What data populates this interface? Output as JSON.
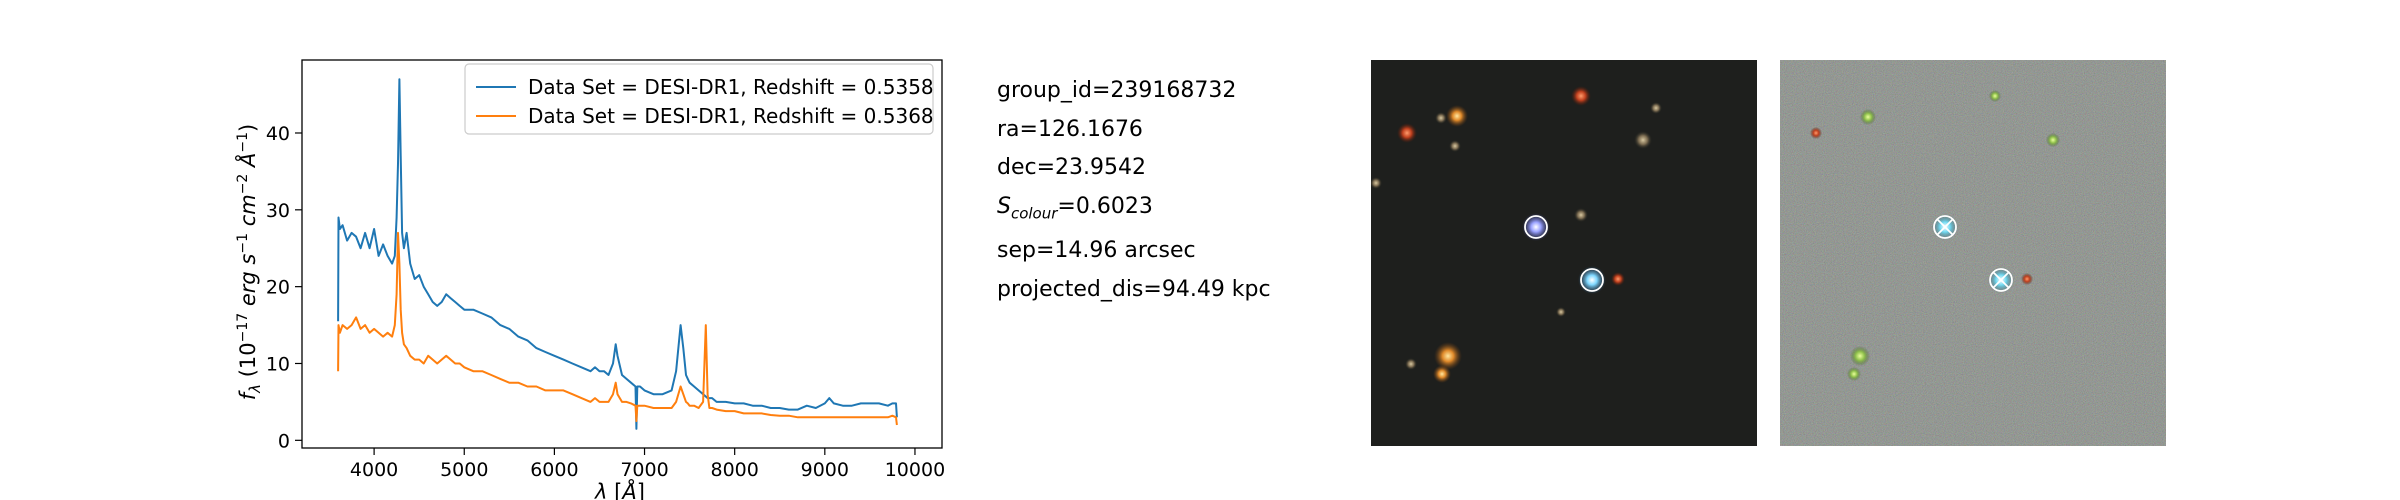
{
  "chart_data": {
    "type": "line",
    "title": "",
    "xlabel": "λ [Å]",
    "ylabel": "f_λ (10^-17 erg s^-1 cm^-2 Å^-1)",
    "xlim": [
      3200,
      10300
    ],
    "ylim": [
      -1,
      49.5
    ],
    "xticks": [
      4000,
      5000,
      6000,
      7000,
      8000,
      9000,
      10000
    ],
    "yticks": [
      0,
      10,
      20,
      30,
      40
    ],
    "grid": false,
    "legend_position": "top-right",
    "series": [
      {
        "name": "Data Set = DESI-DR1, Redshift = 0.5358",
        "color": "#1f77b4",
        "x": [
          3600,
          3605,
          3620,
          3650,
          3700,
          3750,
          3800,
          3850,
          3900,
          3950,
          4000,
          4050,
          4100,
          4150,
          4200,
          4230,
          4250,
          4265,
          4280,
          4295,
          4310,
          4330,
          4360,
          4400,
          4450,
          4500,
          4550,
          4600,
          4650,
          4700,
          4750,
          4800,
          4850,
          4900,
          4950,
          5000,
          5100,
          5200,
          5300,
          5400,
          5500,
          5600,
          5700,
          5800,
          5900,
          6000,
          6100,
          6200,
          6300,
          6400,
          6450,
          6500,
          6550,
          6600,
          6650,
          6680,
          6700,
          6750,
          6800,
          6850,
          6900,
          6910,
          6920,
          6950,
          7000,
          7100,
          7200,
          7300,
          7350,
          7400,
          7430,
          7460,
          7480,
          7500,
          7550,
          7600,
          7650,
          7700,
          7750,
          7800,
          7900,
          8000,
          8100,
          8200,
          8300,
          8400,
          8500,
          8600,
          8700,
          8800,
          8900,
          9000,
          9050,
          9100,
          9200,
          9300,
          9400,
          9500,
          9600,
          9700,
          9750,
          9790,
          9800
        ],
        "y": [
          15.5,
          29,
          27.5,
          28,
          26,
          27,
          26.5,
          25,
          27,
          25,
          27.5,
          24,
          25.5,
          24,
          23,
          24,
          29,
          36,
          47,
          37,
          27,
          25,
          27,
          23,
          21,
          21.5,
          20,
          19,
          18,
          17.5,
          18,
          19,
          18.5,
          18,
          17.5,
          17,
          17,
          16.5,
          16,
          15,
          14.5,
          13.5,
          13,
          12,
          11.5,
          11,
          10.5,
          10,
          9.5,
          9,
          9.5,
          9,
          9,
          8.5,
          10,
          12.5,
          11,
          8.5,
          8,
          7.5,
          7,
          1.5,
          7,
          7,
          6.5,
          6,
          6,
          6.5,
          9,
          15,
          12,
          8.5,
          8,
          7.5,
          7,
          6.5,
          6,
          5.5,
          5.5,
          5,
          5,
          4.8,
          4.8,
          4.5,
          4.5,
          4.2,
          4.2,
          4,
          4,
          4.5,
          4.2,
          4.8,
          5.5,
          4.8,
          4.5,
          4.5,
          4.8,
          4.8,
          4.8,
          4.5,
          4.8,
          4.8,
          3
        ]
      },
      {
        "name": "Data Set = DESI-DR1, Redshift = 0.5368",
        "color": "#ff7f0e",
        "x": [
          3600,
          3605,
          3620,
          3650,
          3700,
          3750,
          3800,
          3850,
          3900,
          3950,
          4000,
          4050,
          4100,
          4150,
          4200,
          4230,
          4250,
          4265,
          4280,
          4295,
          4310,
          4330,
          4360,
          4400,
          4450,
          4500,
          4550,
          4600,
          4650,
          4700,
          4750,
          4800,
          4850,
          4900,
          4950,
          5000,
          5100,
          5200,
          5300,
          5400,
          5500,
          5600,
          5700,
          5800,
          5900,
          6000,
          6100,
          6200,
          6300,
          6400,
          6450,
          6500,
          6550,
          6600,
          6650,
          6680,
          6700,
          6750,
          6800,
          6850,
          6900,
          6910,
          6920,
          6950,
          7000,
          7100,
          7200,
          7300,
          7350,
          7400,
          7430,
          7460,
          7480,
          7500,
          7550,
          7600,
          7650,
          7680,
          7700,
          7720,
          7750,
          7800,
          7900,
          8000,
          8100,
          8200,
          8300,
          8400,
          8500,
          8600,
          8700,
          8800,
          8900,
          9000,
          9100,
          9200,
          9300,
          9400,
          9500,
          9600,
          9700,
          9750,
          9790,
          9800
        ],
        "y": [
          9,
          15,
          14,
          15,
          14.5,
          15,
          16,
          14.5,
          15,
          14,
          14.5,
          14,
          13.5,
          14,
          13.5,
          15,
          19,
          27,
          23,
          17,
          14,
          12.5,
          12,
          11,
          10.5,
          10.5,
          10,
          11,
          10.5,
          10,
          10.5,
          11,
          10.5,
          10,
          10,
          9.5,
          9,
          9,
          8.5,
          8,
          7.5,
          7.5,
          7,
          7,
          6.5,
          6.5,
          6.5,
          6,
          5.5,
          5,
          5.5,
          5,
          5,
          5,
          6,
          7.5,
          6,
          5,
          5,
          4.8,
          4.5,
          2.5,
          4.5,
          4.5,
          4.5,
          4.2,
          4.2,
          4.2,
          5,
          7,
          6,
          5,
          4.8,
          4.5,
          4.5,
          4.2,
          5,
          15,
          6,
          4.2,
          4.2,
          4,
          3.8,
          3.8,
          3.5,
          3.5,
          3.5,
          3.3,
          3.2,
          3.2,
          3,
          3,
          3,
          3,
          3,
          3,
          3,
          3,
          3,
          3,
          3,
          3.2,
          3,
          2
        ]
      }
    ]
  },
  "info": {
    "group_id": "group_id=239168732",
    "ra": "ra=126.1676",
    "dec": "dec=23.9542",
    "s_colour_symbol": "S",
    "s_colour_sub": "colour",
    "s_colour_value": "=0.6023",
    "sep": "sep=14.96 arcsec",
    "projected_dis": "projected_dis=94.49 kpc"
  },
  "cutouts": {
    "left_background": "#1e1f1d",
    "right_background": "#4a4f48",
    "marker_color": "#ffffff",
    "highlight_color": "#5ad0f0"
  }
}
